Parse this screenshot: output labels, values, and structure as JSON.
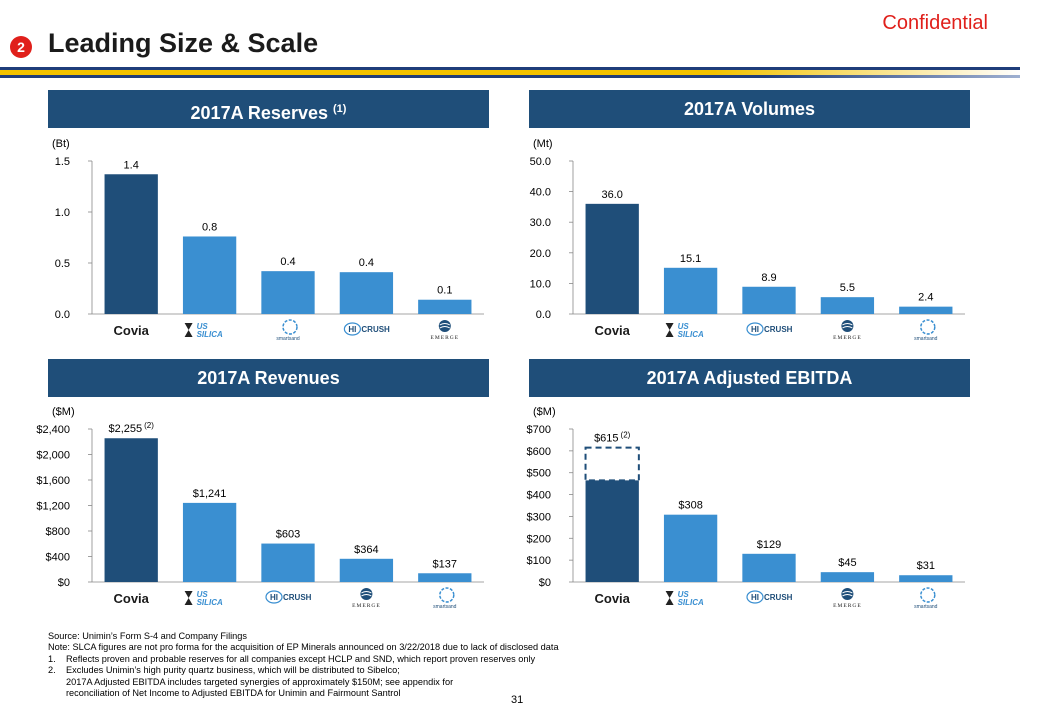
{
  "header": {
    "confidential": "Confidential",
    "section_number": "2",
    "title": "Leading Size & Scale"
  },
  "panels": [
    {
      "title": "2017A Reserves",
      "title_sup": "(1)",
      "unit": "(Bt)",
      "chart_data": {
        "type": "bar",
        "title": "2017A Reserves (1)",
        "ylabel": "(Bt)",
        "ylim": [
          0,
          1.5
        ],
        "ticks": [
          0.0,
          0.5,
          1.0,
          1.5
        ],
        "tick_labels": [
          "0.0",
          "0.5",
          "1.0",
          "1.5"
        ],
        "categories": [
          "Covia",
          "US Silica",
          "Smart Sand",
          "Hi-Crush",
          "Emerge"
        ],
        "values": [
          1.37,
          0.76,
          0.42,
          0.41,
          0.14
        ],
        "labels": [
          "1.4",
          "0.8",
          "0.4",
          "0.4",
          "0.1"
        ],
        "label_sup": [
          "",
          "",
          "",
          "",
          ""
        ]
      }
    },
    {
      "title": "2017A Volumes",
      "title_sup": "",
      "unit": "(Mt)",
      "chart_data": {
        "type": "bar",
        "title": "2017A Volumes",
        "ylabel": "(Mt)",
        "ylim": [
          0,
          50
        ],
        "ticks": [
          0,
          10,
          20,
          30,
          40,
          50
        ],
        "tick_labels": [
          "0.0",
          "10.0",
          "20.0",
          "30.0",
          "40.0",
          "50.0"
        ],
        "categories": [
          "Covia",
          "US Silica",
          "Hi-Crush",
          "Emerge",
          "Smart Sand"
        ],
        "values": [
          36.0,
          15.1,
          8.9,
          5.5,
          2.4
        ],
        "labels": [
          "36.0",
          "15.1",
          "8.9",
          "5.5",
          "2.4"
        ],
        "label_sup": [
          "",
          "",
          "",
          "",
          ""
        ]
      }
    },
    {
      "title": "2017A Revenues",
      "title_sup": "",
      "unit": "($M)",
      "chart_data": {
        "type": "bar",
        "title": "2017A Revenues",
        "ylabel": "($M)",
        "ylim": [
          0,
          2400
        ],
        "ticks": [
          0,
          400,
          800,
          1200,
          1600,
          2000,
          2400
        ],
        "tick_labels": [
          "$0",
          "$400",
          "$800",
          "$1,200",
          "$1,600",
          "$2,000",
          "$2,400"
        ],
        "categories": [
          "Covia",
          "US Silica",
          "Hi-Crush",
          "Emerge",
          "Smart Sand"
        ],
        "values": [
          2255,
          1241,
          603,
          364,
          137
        ],
        "labels": [
          "$2,255",
          "$1,241",
          "$603",
          "$364",
          "$137"
        ],
        "label_sup": [
          "(2)",
          "",
          "",
          "",
          ""
        ]
      }
    },
    {
      "title": "2017A Adjusted EBITDA",
      "title_sup": "",
      "unit": "($M)",
      "chart_data": {
        "type": "bar",
        "title": "2017A Adjusted EBITDA",
        "ylabel": "($M)",
        "ylim": [
          0,
          700
        ],
        "ticks": [
          0,
          100,
          200,
          300,
          400,
          500,
          600,
          700
        ],
        "tick_labels": [
          "$0",
          "$100",
          "$200",
          "$300",
          "$400",
          "$500",
          "$600",
          "$700"
        ],
        "categories": [
          "Covia",
          "US Silica",
          "Hi-Crush",
          "Emerge",
          "Smart Sand"
        ],
        "values": [
          615,
          308,
          129,
          45,
          31
        ],
        "labels": [
          "$615",
          "$308",
          "$129",
          "$45",
          "$31"
        ],
        "label_sup": [
          "(2)",
          "",
          "",
          "",
          ""
        ],
        "synergy_segment": {
          "category": "Covia",
          "from": 465,
          "to": 615
        }
      }
    }
  ],
  "logos": {
    "covia": "Covia",
    "us_top": "US",
    "us_bottom": "SILICA",
    "smart_sand": "smartsand",
    "hi": "HI",
    "crush": "CRUSH",
    "emerge": "EMERGE"
  },
  "colors": {
    "covia_bar": "#1f4e79",
    "peer_bar": "#3a8fd1",
    "header": "#1f4e79",
    "accent_red": "#e0201b"
  },
  "footnotes": {
    "source": "Source:  Unimin’s Form S-4 and Company Filings",
    "note": "Note:  SLCA figures are not pro forma for the acquisition of EP Minerals announced on 3/22/2018 due to lack of disclosed data",
    "items": [
      {
        "n": "1.",
        "text": "Reflects proven and probable reserves for all companies except HCLP and SND, which report proven reserves only"
      },
      {
        "n": "2.",
        "text": "Excludes Unimin’s high purity quartz business, which will be distributed to Sibelco;"
      }
    ],
    "continuation_1": "2017A Adjusted EBITDA includes targeted synergies of approximately $150M; see appendix for",
    "continuation_2": "reconciliation of Net Income to Adjusted EBITDA for Unimin and Fairmount Santrol"
  },
  "page_number": "31"
}
